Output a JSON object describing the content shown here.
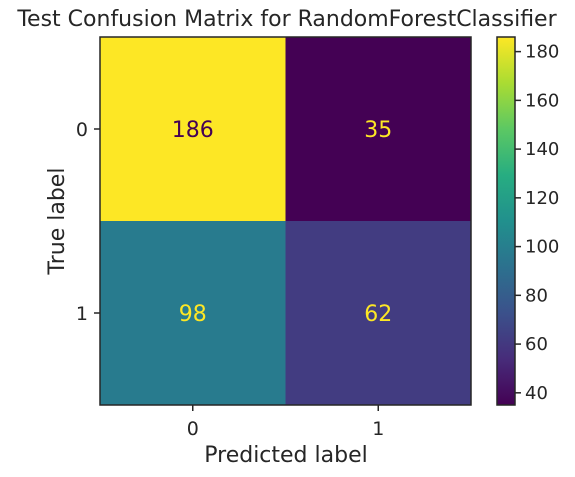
{
  "chart_data": {
    "type": "heatmap",
    "title": "Test Confusion Matrix for RandomForestClassifier",
    "xlabel": "Predicted label",
    "ylabel": "True label",
    "x_categories": [
      "0",
      "1"
    ],
    "y_categories": [
      "0",
      "1"
    ],
    "matrix": [
      [
        186,
        35
      ],
      [
        98,
        62
      ]
    ],
    "colormap": "viridis",
    "colorbar": {
      "ticks": [
        "40",
        "60",
        "80",
        "100",
        "120",
        "140",
        "160",
        "180"
      ],
      "min": 35,
      "max": 186
    },
    "grid": false
  }
}
